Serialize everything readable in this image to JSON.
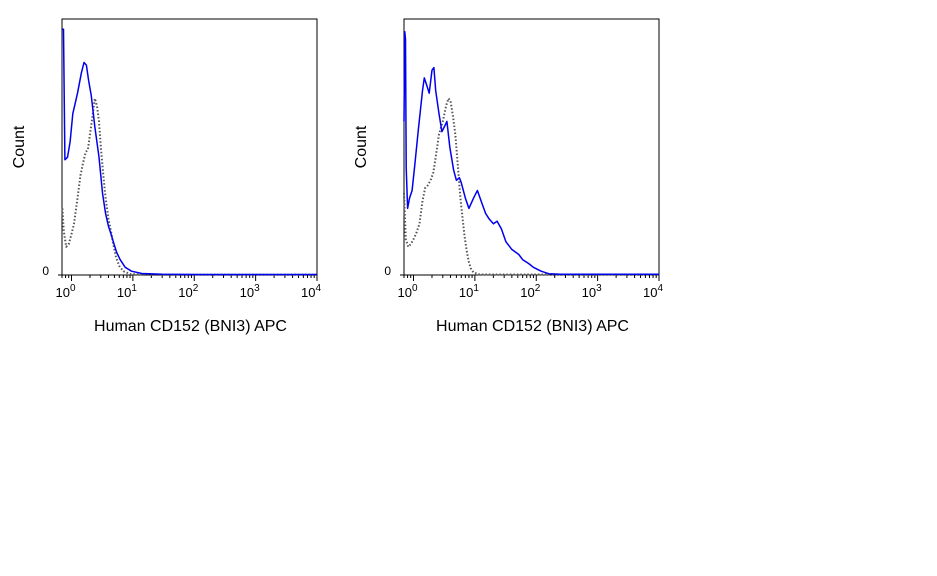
{
  "chart_data": [
    {
      "type": "line",
      "xlabel": "Human CD152 (BNI3) APC",
      "ylabel": "Count",
      "xscale": "log",
      "xlim": [
        0.7,
        10000
      ],
      "x_ticks": [
        {
          "base": "10",
          "exp": "0",
          "value": 1
        },
        {
          "base": "10",
          "exp": "1",
          "value": 10
        },
        {
          "base": "10",
          "exp": "2",
          "value": 100
        },
        {
          "base": "10",
          "exp": "3",
          "value": 1000
        },
        {
          "base": "10",
          "exp": "4",
          "value": 10000
        }
      ],
      "y_tick_label": "0",
      "ylim": [
        0,
        100
      ],
      "grid": false,
      "series": [
        {
          "color": "#0000ee",
          "style": "solid",
          "points": [
            [
              0.71,
              96
            ],
            [
              0.74,
              96
            ],
            [
              0.78,
              45
            ],
            [
              0.86,
              46
            ],
            [
              0.95,
              52
            ],
            [
              1.05,
              63
            ],
            [
              1.25,
              71
            ],
            [
              1.45,
              79
            ],
            [
              1.6,
              83
            ],
            [
              1.75,
              82
            ],
            [
              1.9,
              76
            ],
            [
              2.1,
              70
            ],
            [
              2.4,
              58
            ],
            [
              2.8,
              46
            ],
            [
              3.2,
              32
            ],
            [
              3.6,
              24
            ],
            [
              4.0,
              19
            ],
            [
              4.4,
              16
            ],
            [
              4.8,
              13
            ],
            [
              5.4,
              9
            ],
            [
              6.2,
              6
            ],
            [
              7.5,
              3
            ],
            [
              9.5,
              1.5
            ],
            [
              14,
              0.6
            ],
            [
              30,
              0.3
            ],
            [
              100,
              0.2
            ],
            [
              1000,
              0.2
            ],
            [
              10000,
              0.2
            ]
          ]
        },
        {
          "color": "#555555",
          "style": "dotted",
          "points": [
            [
              0.71,
              26
            ],
            [
              0.75,
              17
            ],
            [
              0.82,
              11
            ],
            [
              0.9,
              12
            ],
            [
              1.0,
              16
            ],
            [
              1.1,
              20
            ],
            [
              1.25,
              30
            ],
            [
              1.4,
              39
            ],
            [
              1.55,
              44
            ],
            [
              1.7,
              48
            ],
            [
              1.85,
              49
            ],
            [
              2.0,
              55
            ],
            [
              2.2,
              62
            ],
            [
              2.4,
              69
            ],
            [
              2.6,
              66
            ],
            [
              2.8,
              60
            ],
            [
              3.0,
              50
            ],
            [
              3.3,
              39
            ],
            [
              3.6,
              30
            ],
            [
              4.0,
              22
            ],
            [
              4.4,
              17
            ],
            [
              4.8,
              12
            ],
            [
              5.3,
              7
            ],
            [
              6.0,
              3.5
            ],
            [
              7.0,
              1.5
            ],
            [
              9.0,
              0.4
            ],
            [
              15,
              0.1
            ],
            [
              10000,
              0.1
            ]
          ]
        }
      ]
    },
    {
      "type": "line",
      "xlabel": "Human CD152 (BNI3) APC",
      "ylabel": "Count",
      "xscale": "log",
      "xlim": [
        0.7,
        10000
      ],
      "x_ticks": [
        {
          "base": "10",
          "exp": "0",
          "value": 1
        },
        {
          "base": "10",
          "exp": "1",
          "value": 10
        },
        {
          "base": "10",
          "exp": "2",
          "value": 100
        },
        {
          "base": "10",
          "exp": "3",
          "value": 1000
        },
        {
          "base": "10",
          "exp": "4",
          "value": 10000
        }
      ],
      "y_tick_label": "0",
      "ylim": [
        0,
        100
      ],
      "grid": false,
      "series": [
        {
          "color": "#0000ee",
          "style": "solid",
          "points": [
            [
              0.7,
              60
            ],
            [
              0.72,
              95
            ],
            [
              0.74,
              92
            ],
            [
              0.76,
              42
            ],
            [
              0.8,
              26
            ],
            [
              0.86,
              30
            ],
            [
              0.95,
              33
            ],
            [
              1.05,
              43
            ],
            [
              1.2,
              57
            ],
            [
              1.4,
              72
            ],
            [
              1.5,
              77
            ],
            [
              1.6,
              75
            ],
            [
              1.8,
              71
            ],
            [
              2.0,
              80
            ],
            [
              2.15,
              81
            ],
            [
              2.3,
              72
            ],
            [
              2.6,
              63
            ],
            [
              2.9,
              56
            ],
            [
              3.2,
              58
            ],
            [
              3.5,
              60
            ],
            [
              3.9,
              50
            ],
            [
              4.5,
              41
            ],
            [
              5.0,
              37
            ],
            [
              5.6,
              38
            ],
            [
              6.0,
              36
            ],
            [
              7.0,
              30
            ],
            [
              8.0,
              26
            ],
            [
              9.5,
              30
            ],
            [
              11,
              33
            ],
            [
              13,
              28
            ],
            [
              15,
              24
            ],
            [
              17,
              22
            ],
            [
              20,
              20
            ],
            [
              23,
              21
            ],
            [
              27,
              18
            ],
            [
              32,
              13
            ],
            [
              40,
              10
            ],
            [
              52,
              8
            ],
            [
              60,
              6
            ],
            [
              75,
              4.5
            ],
            [
              90,
              3
            ],
            [
              120,
              1.5
            ],
            [
              160,
              0.5
            ],
            [
              250,
              0.3
            ],
            [
              1000,
              0.3
            ],
            [
              10000,
              0.3
            ]
          ]
        },
        {
          "color": "#555555",
          "style": "dotted",
          "points": [
            [
              0.7,
              32
            ],
            [
              0.75,
              14
            ],
            [
              0.82,
              11
            ],
            [
              0.9,
              12
            ],
            [
              1.0,
              14
            ],
            [
              1.1,
              16
            ],
            [
              1.25,
              20
            ],
            [
              1.4,
              29
            ],
            [
              1.55,
              34
            ],
            [
              1.7,
              35
            ],
            [
              1.9,
              37
            ],
            [
              2.1,
              40
            ],
            [
              2.3,
              46
            ],
            [
              2.6,
              55
            ],
            [
              3.0,
              60
            ],
            [
              3.4,
              66
            ],
            [
              3.7,
              69
            ],
            [
              4.0,
              68
            ],
            [
              4.4,
              62
            ],
            [
              4.8,
              55
            ],
            [
              5.3,
              42
            ],
            [
              5.8,
              30
            ],
            [
              6.3,
              22
            ],
            [
              6.8,
              15
            ],
            [
              7.4,
              9
            ],
            [
              8.0,
              5
            ],
            [
              8.6,
              2.5
            ],
            [
              9.5,
              1
            ],
            [
              12,
              0.2
            ],
            [
              10000,
              0.2
            ]
          ]
        }
      ]
    }
  ]
}
